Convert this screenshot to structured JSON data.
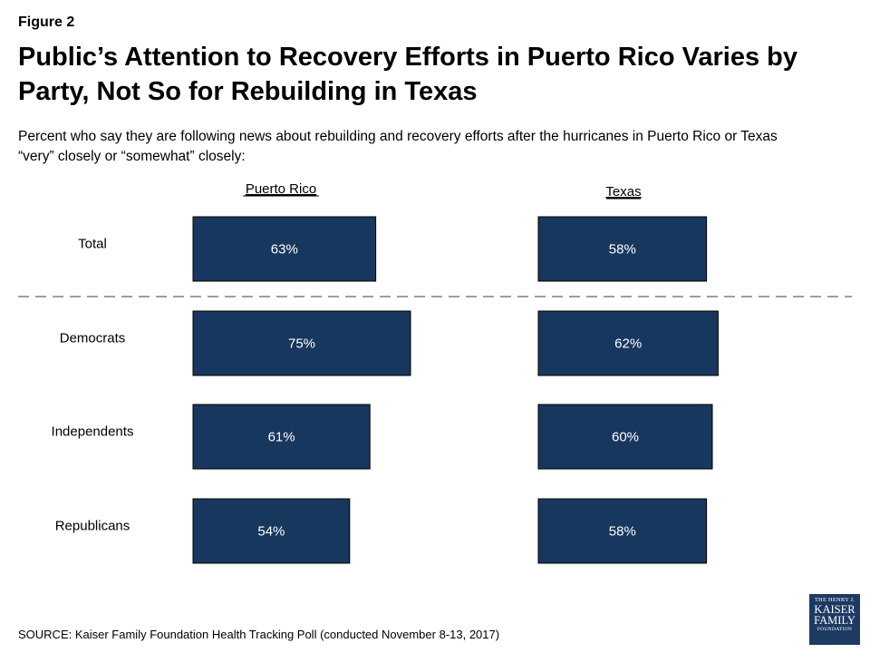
{
  "figure_label": "Figure 2",
  "title": "Public’s Attention to Recovery Efforts in Puerto Rico Varies by Party, Not So for Rebuilding in Texas",
  "subtitle": "Percent who say they are following news about rebuilding and recovery efforts after the hurricanes in Puerto Rico or Texas “very” closely or “somewhat” closely:",
  "source": "SOURCE: Kaiser Family Foundation Health Tracking Poll (conducted November 8-13, 2017)",
  "logo": {
    "line1": "THE HENRY J.",
    "line2": "KAISER",
    "line3": "FAMILY",
    "line4": "FOUNDATION"
  },
  "colors": {
    "bar_fill": "#17375e",
    "bar_text": "#ffffff",
    "divider": "#7f7f7f"
  },
  "chart_data": {
    "type": "bar",
    "orientation": "horizontal",
    "categories": [
      "Total",
      "Democrats",
      "Independents",
      "Republicans"
    ],
    "series": [
      {
        "name": "Puerto Rico",
        "values": [
          63,
          75,
          61,
          54
        ]
      },
      {
        "name": "Texas",
        "values": [
          58,
          62,
          60,
          58
        ]
      }
    ],
    "value_labels": [
      [
        "63%",
        "75%",
        "61%",
        "54%"
      ],
      [
        "58%",
        "62%",
        "60%",
        "58%"
      ]
    ],
    "unit": "%",
    "divider_after_category": "Total",
    "grid": false
  }
}
